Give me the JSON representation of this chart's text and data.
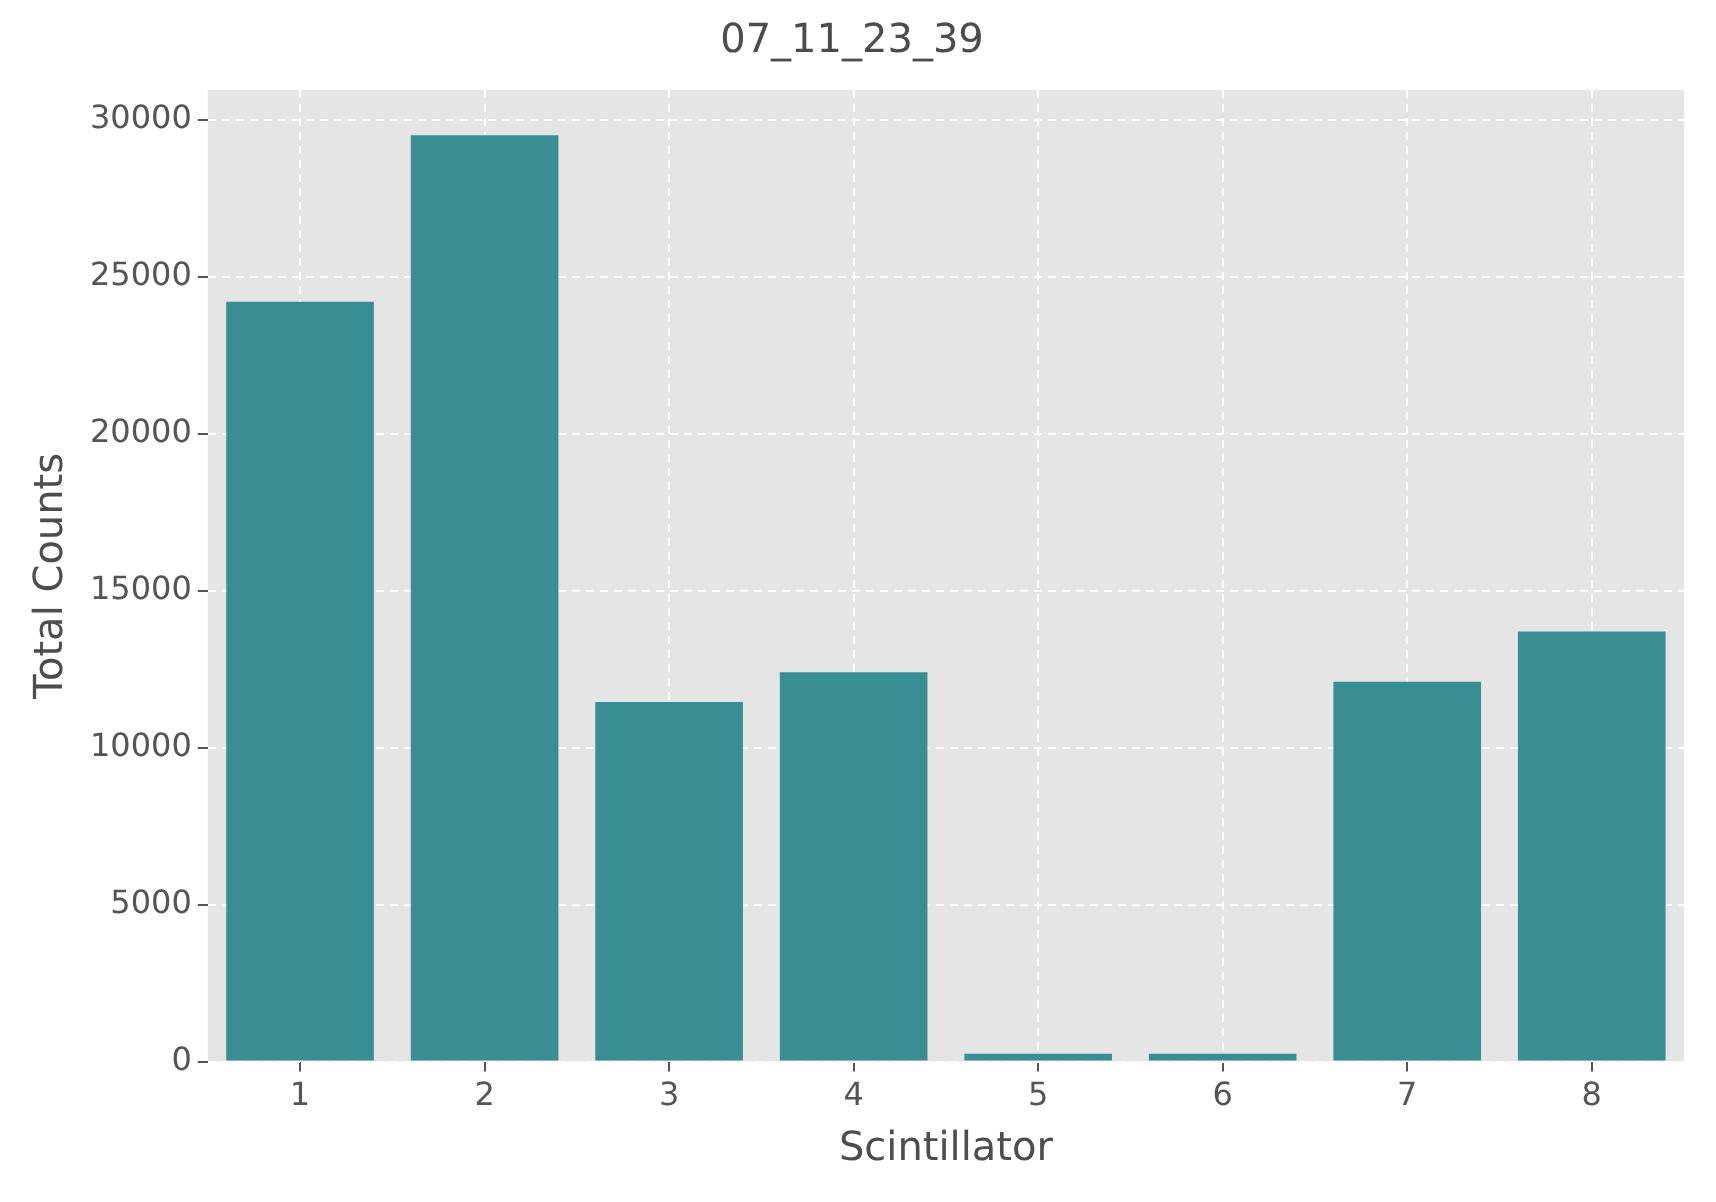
{
  "chart_data": {
    "type": "bar",
    "title": "07_11_23_39",
    "xlabel": "Scintillator",
    "ylabel": "Total Counts",
    "categories": [
      "1",
      "2",
      "3",
      "4",
      "5",
      "6",
      "7",
      "8"
    ],
    "values": [
      24200,
      29500,
      11450,
      12400,
      250,
      250,
      12100,
      13700
    ],
    "color": "#388e93",
    "ylim": [
      0,
      30940
    ],
    "yticks": [
      0,
      5000,
      10000,
      15000,
      20000,
      25000,
      30000
    ],
    "grid": true
  }
}
